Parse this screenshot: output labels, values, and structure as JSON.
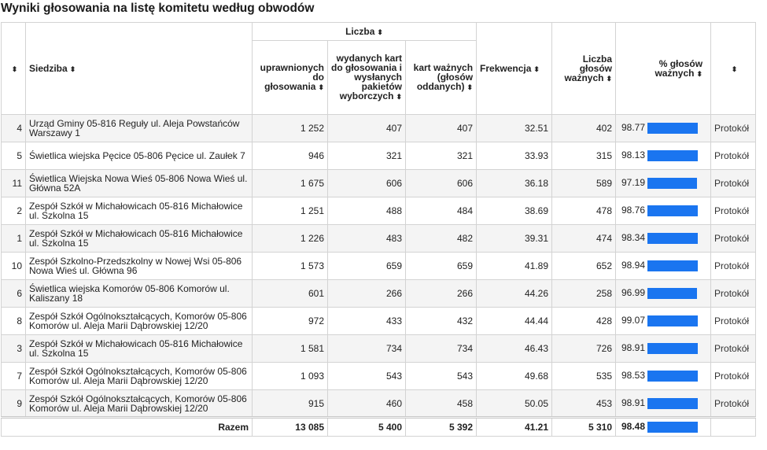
{
  "page": {
    "title": "Wyniki głosowania na listę komitetu według obwodów"
  },
  "sort_icon": "sort-updown-icon",
  "colors": {
    "bar": "#1a75f0",
    "row_alt": "#f4f4f4",
    "border": "#d3d3d3"
  },
  "headers": {
    "number": "",
    "siedziba": "Siedziba",
    "liczba": "Liczba",
    "uprawnionych": "uprawnionych do głosowania",
    "wydanych": "wydanych kart do głosowania i wysłanych pakietów wyborczych",
    "kart_waznych": "kart ważnych (głosów oddanych)",
    "frekwencja": "Frekwencja",
    "glosow_waznych": "Liczba głosów ważnych",
    "procent": "% głosów ważnych",
    "protokol": ""
  },
  "rows": [
    {
      "nr": "4",
      "siedziba": "Urząd Gminy 05-816 Reguły ul. Aleja Powstańców Warszawy 1",
      "uprawnionych": "1 252",
      "wydanych": "407",
      "kart": "407",
      "frekwencja": "32.51",
      "glosow": "402",
      "procent": "98.77",
      "pct": 98.77,
      "link": "Protokół"
    },
    {
      "nr": "5",
      "siedziba": "Świetlica wiejska Pęcice 05-806 Pęcice ul. Zaułek 7",
      "uprawnionych": "946",
      "wydanych": "321",
      "kart": "321",
      "frekwencja": "33.93",
      "glosow": "315",
      "procent": "98.13",
      "pct": 98.13,
      "link": "Protokół"
    },
    {
      "nr": "11",
      "siedziba": "Świetlica Wiejska Nowa Wieś 05-806 Nowa Wieś ul. Główna 52A",
      "uprawnionych": "1 675",
      "wydanych": "606",
      "kart": "606",
      "frekwencja": "36.18",
      "glosow": "589",
      "procent": "97.19",
      "pct": 97.19,
      "link": "Protokół"
    },
    {
      "nr": "2",
      "siedziba": "Zespół Szkół w Michałowicach 05-816 Michałowice ul. Szkolna 15",
      "uprawnionych": "1 251",
      "wydanych": "488",
      "kart": "484",
      "frekwencja": "38.69",
      "glosow": "478",
      "procent": "98.76",
      "pct": 98.76,
      "link": "Protokół"
    },
    {
      "nr": "1",
      "siedziba": "Zespół Szkół w Michałowicach 05-816 Michałowice ul. Szkolna 15",
      "uprawnionych": "1 226",
      "wydanych": "483",
      "kart": "482",
      "frekwencja": "39.31",
      "glosow": "474",
      "procent": "98.34",
      "pct": 98.34,
      "link": "Protokół"
    },
    {
      "nr": "10",
      "siedziba": "Zespół Szkolno-Przedszkolny w Nowej Wsi 05-806 Nowa Wieś ul. Główna 96",
      "uprawnionych": "1 573",
      "wydanych": "659",
      "kart": "659",
      "frekwencja": "41.89",
      "glosow": "652",
      "procent": "98.94",
      "pct": 98.94,
      "link": "Protokół"
    },
    {
      "nr": "6",
      "siedziba": "Świetlica wiejska Komorów 05-806 Komorów ul. Kaliszany 18",
      "uprawnionych": "601",
      "wydanych": "266",
      "kart": "266",
      "frekwencja": "44.26",
      "glosow": "258",
      "procent": "96.99",
      "pct": 96.99,
      "link": "Protokół"
    },
    {
      "nr": "8",
      "siedziba": "Zespół Szkół Ogólnokształcących, Komorów 05-806 Komorów ul. Aleja Marii Dąbrowskiej 12/20",
      "uprawnionych": "972",
      "wydanych": "433",
      "kart": "432",
      "frekwencja": "44.44",
      "glosow": "428",
      "procent": "99.07",
      "pct": 99.07,
      "link": "Protokół"
    },
    {
      "nr": "3",
      "siedziba": "Zespół Szkół w Michałowicach 05-816 Michałowice ul. Szkolna 15",
      "uprawnionych": "1 581",
      "wydanych": "734",
      "kart": "734",
      "frekwencja": "46.43",
      "glosow": "726",
      "procent": "98.91",
      "pct": 98.91,
      "link": "Protokół"
    },
    {
      "nr": "7",
      "siedziba": "Zespół Szkół Ogólnokształcących, Komorów 05-806 Komorów ul. Aleja Marii Dąbrowskiej 12/20",
      "uprawnionych": "1 093",
      "wydanych": "543",
      "kart": "543",
      "frekwencja": "49.68",
      "glosow": "535",
      "procent": "98.53",
      "pct": 98.53,
      "link": "Protokół"
    },
    {
      "nr": "9",
      "siedziba": "Zespół Szkół Ogólnokształcących, Komorów 05-806 Komorów ul. Aleja Marii Dąbrowskiej 12/20",
      "uprawnionych": "915",
      "wydanych": "460",
      "kart": "458",
      "frekwencja": "50.05",
      "glosow": "453",
      "procent": "98.91",
      "pct": 98.91,
      "link": "Protokół"
    }
  ],
  "total": {
    "label": "Razem",
    "uprawnionych": "13 085",
    "wydanych": "5 400",
    "kart": "5 392",
    "frekwencja": "41.21",
    "glosow": "5 310",
    "procent": "98.48",
    "pct": 98.48
  }
}
